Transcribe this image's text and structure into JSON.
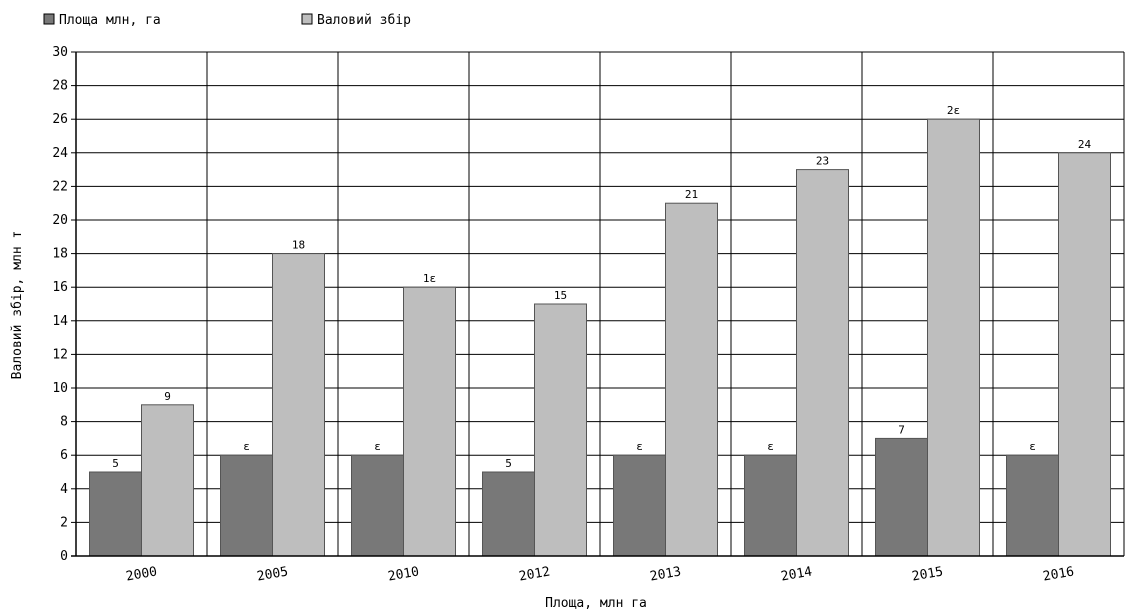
{
  "chart_data": {
    "type": "bar",
    "categories": [
      "2000",
      "2005",
      "2010",
      "2012",
      "2013",
      "2014",
      "2015",
      "2016"
    ],
    "series": [
      {
        "name": "Площа млн, га",
        "values": [
          5,
          6,
          6,
          5,
          6,
          6,
          7,
          6
        ],
        "labels": [
          "5",
          "ɛ",
          "ɛ",
          "5",
          "ɛ",
          "ɛ",
          "7",
          "ɛ"
        ],
        "color": "#787878"
      },
      {
        "name": "Валовий збір",
        "values": [
          9,
          18,
          16,
          15,
          21,
          23,
          26,
          24
        ],
        "labels": [
          "9",
          "18",
          "1ɛ",
          "15",
          "21",
          "23",
          "2ɛ",
          "24"
        ],
        "color": "#bebebe"
      }
    ],
    "xlabel": "Площа, млн га",
    "ylabel": "Валовий збір, млн т",
    "ylim": [
      0,
      30
    ],
    "yticks": [
      0,
      2,
      4,
      6,
      8,
      10,
      12,
      14,
      16,
      18,
      20,
      22,
      24,
      26,
      28,
      30
    ],
    "grid": true,
    "legend_position": "top-left"
  }
}
